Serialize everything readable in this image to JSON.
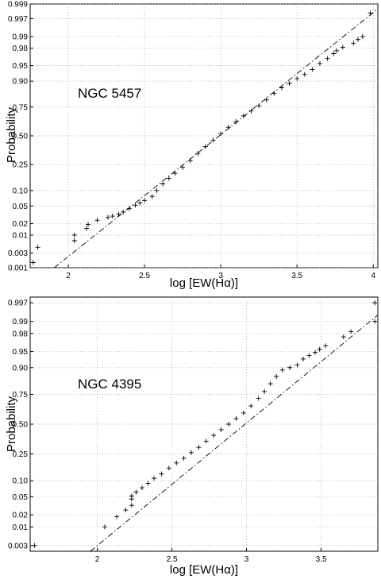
{
  "chart_data": [
    {
      "type": "scatter",
      "subtype": "normal-probability-plot",
      "annotation": "NGC 5457",
      "xlabel": "log [EW(Hα)]",
      "ylabel": "Probability",
      "xlim": [
        1.75,
        4.03
      ],
      "ylim": [
        0.001,
        0.999
      ],
      "yscale": "probit",
      "grid": true,
      "xticks": [
        "2",
        "2.5",
        "3",
        "3.5",
        "4"
      ],
      "yticks": [
        "0.001",
        "0.003",
        "0.01",
        "0.02",
        "0.05",
        "0.10",
        "0.25",
        "0.50",
        "0.75",
        "0.90",
        "0.95",
        "0.98",
        "0.99",
        "0.997",
        "0.999"
      ],
      "reference_line": {
        "mean": 2.99,
        "sd": 0.35,
        "style": "dash-dot"
      },
      "points": [
        [
          1.77,
          0.0015
        ],
        [
          1.8,
          0.0045
        ],
        [
          2.04,
          0.007
        ],
        [
          2.04,
          0.01
        ],
        [
          2.12,
          0.015
        ],
        [
          2.13,
          0.019
        ],
        [
          2.19,
          0.024
        ],
        [
          2.26,
          0.028
        ],
        [
          2.29,
          0.03
        ],
        [
          2.33,
          0.033
        ],
        [
          2.36,
          0.037
        ],
        [
          2.4,
          0.044
        ],
        [
          2.44,
          0.052
        ],
        [
          2.47,
          0.058
        ],
        [
          2.5,
          0.065
        ],
        [
          2.55,
          0.078
        ],
        [
          2.58,
          0.1
        ],
        [
          2.62,
          0.13
        ],
        [
          2.66,
          0.16
        ],
        [
          2.7,
          0.19
        ],
        [
          2.75,
          0.23
        ],
        [
          2.8,
          0.28
        ],
        [
          2.85,
          0.34
        ],
        [
          2.9,
          0.4
        ],
        [
          2.95,
          0.46
        ],
        [
          3.0,
          0.52
        ],
        [
          3.05,
          0.58
        ],
        [
          3.1,
          0.63
        ],
        [
          3.15,
          0.68
        ],
        [
          3.2,
          0.72
        ],
        [
          3.25,
          0.76
        ],
        [
          3.3,
          0.8
        ],
        [
          3.35,
          0.84
        ],
        [
          3.4,
          0.87
        ],
        [
          3.45,
          0.89
        ],
        [
          3.5,
          0.91
        ],
        [
          3.55,
          0.925
        ],
        [
          3.6,
          0.94
        ],
        [
          3.65,
          0.955
        ],
        [
          3.7,
          0.965
        ],
        [
          3.74,
          0.973
        ],
        [
          3.76,
          0.977
        ],
        [
          3.8,
          0.981
        ],
        [
          3.87,
          0.985
        ],
        [
          3.9,
          0.988
        ],
        [
          3.93,
          0.99
        ],
        [
          3.98,
          0.998
        ]
      ]
    },
    {
      "type": "scatter",
      "subtype": "normal-probability-plot",
      "annotation": "NGC 4395",
      "xlabel": "log [EW(Hα)]",
      "ylabel": "Probability",
      "xlim": [
        1.55,
        3.88
      ],
      "ylim": [
        0.002,
        0.998
      ],
      "yscale": "probit",
      "grid": true,
      "xticks": [
        "2",
        "2.5",
        "3",
        "3.5"
      ],
      "yticks": [
        "0.003",
        "0.01",
        "0.02",
        "0.05",
        "0.10",
        "0.25",
        "0.50",
        "0.75",
        "0.90",
        "0.95",
        "0.98",
        "0.99",
        "0.997"
      ],
      "reference_line": {
        "mean": 2.99,
        "sd": 0.36,
        "style": "dash-dot"
      },
      "points": [
        [
          1.58,
          0.003
        ],
        [
          2.05,
          0.01
        ],
        [
          2.13,
          0.018
        ],
        [
          2.19,
          0.026
        ],
        [
          2.23,
          0.033
        ],
        [
          2.23,
          0.045
        ],
        [
          2.23,
          0.052
        ],
        [
          2.26,
          0.062
        ],
        [
          2.3,
          0.075
        ],
        [
          2.34,
          0.09
        ],
        [
          2.38,
          0.11
        ],
        [
          2.43,
          0.13
        ],
        [
          2.48,
          0.16
        ],
        [
          2.53,
          0.19
        ],
        [
          2.58,
          0.22
        ],
        [
          2.63,
          0.26
        ],
        [
          2.68,
          0.3
        ],
        [
          2.73,
          0.35
        ],
        [
          2.78,
          0.4
        ],
        [
          2.83,
          0.45
        ],
        [
          2.88,
          0.5
        ],
        [
          2.93,
          0.55
        ],
        [
          2.98,
          0.6
        ],
        [
          3.03,
          0.66
        ],
        [
          3.08,
          0.72
        ],
        [
          3.12,
          0.77
        ],
        [
          3.16,
          0.82
        ],
        [
          3.2,
          0.86
        ],
        [
          3.24,
          0.89
        ],
        [
          3.29,
          0.9
        ],
        [
          3.34,
          0.91
        ],
        [
          3.38,
          0.93
        ],
        [
          3.42,
          0.94
        ],
        [
          3.46,
          0.948
        ],
        [
          3.49,
          0.955
        ],
        [
          3.53,
          0.962
        ],
        [
          3.65,
          0.976
        ],
        [
          3.7,
          0.982
        ],
        [
          3.86,
          0.99
        ],
        [
          3.86,
          0.997
        ]
      ]
    }
  ]
}
